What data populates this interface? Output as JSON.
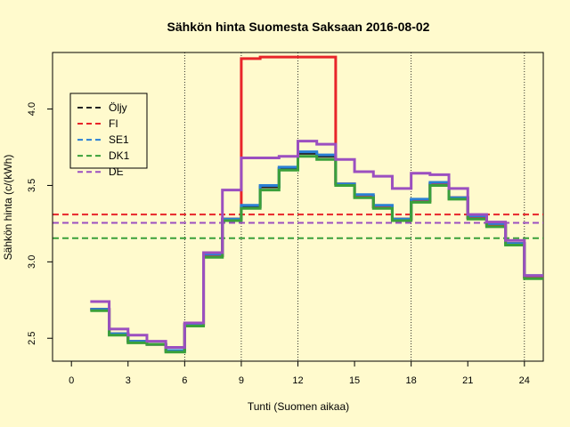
{
  "chart_data": {
    "type": "line",
    "title": "Sähkön hinta Suomesta Saksaan 2016-08-02",
    "xlabel": "Tunti (Suomen aikaa)",
    "ylabel": "Sähkön hinta (c/(kWh)",
    "xlim": [
      -1,
      25
    ],
    "ylim": [
      2.35,
      4.37
    ],
    "xticks": [
      0,
      3,
      6,
      9,
      12,
      15,
      18,
      21,
      24
    ],
    "yticks": [
      2.5,
      3.0,
      3.5,
      4.0
    ],
    "ytick_labels": [
      "2.5",
      "3.0",
      "3.5",
      "4.0"
    ],
    "vlines": [
      6,
      9,
      12,
      18,
      24
    ],
    "grid": false,
    "legend_position": "top-left",
    "x": [
      1,
      2,
      3,
      4,
      5,
      6,
      7,
      8,
      9,
      10,
      11,
      12,
      13,
      14,
      15,
      16,
      17,
      18,
      19,
      20,
      21,
      22,
      23,
      24,
      25
    ],
    "series": [
      {
        "name": "Öljy",
        "color": "#222222",
        "step": true,
        "values": [
          2.69,
          2.53,
          2.48,
          2.46,
          2.42,
          2.59,
          3.04,
          3.28,
          3.36,
          3.49,
          3.61,
          3.71,
          3.69,
          3.51,
          3.43,
          3.36,
          3.28,
          3.4,
          3.51,
          3.42,
          3.29,
          3.24,
          3.12,
          2.9,
          2.9
        ]
      },
      {
        "name": "FI",
        "color": "#e8252a",
        "step": true,
        "hline": 3.31,
        "values": [
          2.69,
          2.53,
          2.48,
          2.46,
          2.42,
          2.59,
          3.04,
          3.28,
          4.33,
          4.34,
          4.34,
          4.34,
          4.34,
          3.51,
          3.43,
          3.36,
          3.28,
          3.4,
          3.51,
          3.42,
          3.29,
          3.24,
          3.12,
          2.9,
          2.9
        ]
      },
      {
        "name": "SE1",
        "color": "#2a7fd4",
        "step": true,
        "values": [
          2.69,
          2.53,
          2.48,
          2.46,
          2.42,
          2.59,
          3.05,
          3.28,
          3.37,
          3.5,
          3.62,
          3.72,
          3.7,
          3.51,
          3.44,
          3.37,
          3.28,
          3.41,
          3.52,
          3.42,
          3.3,
          3.25,
          3.12,
          2.91,
          2.91
        ]
      },
      {
        "name": "DK1",
        "color": "#3aa03a",
        "step": true,
        "hline": 3.155,
        "values": [
          2.68,
          2.52,
          2.47,
          2.46,
          2.41,
          2.58,
          3.03,
          3.27,
          3.35,
          3.47,
          3.6,
          3.69,
          3.67,
          3.5,
          3.42,
          3.35,
          3.27,
          3.39,
          3.5,
          3.41,
          3.28,
          3.23,
          3.11,
          2.89,
          2.89
        ]
      },
      {
        "name": "DE",
        "color": "#9b4fc0",
        "step": true,
        "hline": 3.255,
        "values": [
          2.74,
          2.56,
          2.52,
          2.48,
          2.44,
          2.6,
          3.06,
          3.47,
          3.68,
          3.68,
          3.69,
          3.79,
          3.77,
          3.67,
          3.59,
          3.56,
          3.48,
          3.58,
          3.57,
          3.48,
          3.31,
          3.26,
          3.14,
          2.91,
          2.91
        ]
      }
    ]
  }
}
